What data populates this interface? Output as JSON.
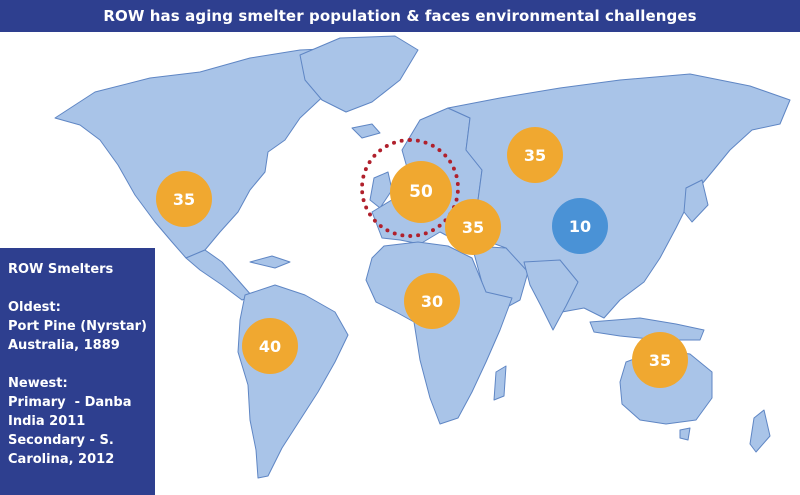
{
  "title": "ROW has aging smelter population & faces environmental challenges",
  "colors": {
    "title_bg": "#2e3f8f",
    "ocean": "#ffffff",
    "land": "#a9c4e8",
    "land_outline": "#5f86c4",
    "bubble_orange": "#f0a830",
    "bubble_blue": "#4a92d6",
    "highlight_ring": "#b0202c"
  },
  "bubbles": [
    {
      "label": "35",
      "region": "north-america",
      "color": "orange"
    },
    {
      "label": "50",
      "region": "europe",
      "color": "orange",
      "highlighted": true
    },
    {
      "label": "35",
      "region": "russia",
      "color": "orange"
    },
    {
      "label": "35",
      "region": "middle-east",
      "color": "orange"
    },
    {
      "label": "10",
      "region": "china",
      "color": "blue"
    },
    {
      "label": "30",
      "region": "africa",
      "color": "orange"
    },
    {
      "label": "40",
      "region": "south-america",
      "color": "orange"
    },
    {
      "label": "35",
      "region": "australia",
      "color": "orange"
    }
  ],
  "panel": {
    "heading": "ROW Smelters",
    "oldest_label": "Oldest:",
    "oldest_lines": [
      "Port Pine (Nyrstar)",
      "Australia, 1889"
    ],
    "newest_label": "Newest:",
    "newest_lines": [
      "Primary  - Danba",
      "India 2011",
      "Secondary - S.",
      "Carolina, 2012"
    ]
  }
}
